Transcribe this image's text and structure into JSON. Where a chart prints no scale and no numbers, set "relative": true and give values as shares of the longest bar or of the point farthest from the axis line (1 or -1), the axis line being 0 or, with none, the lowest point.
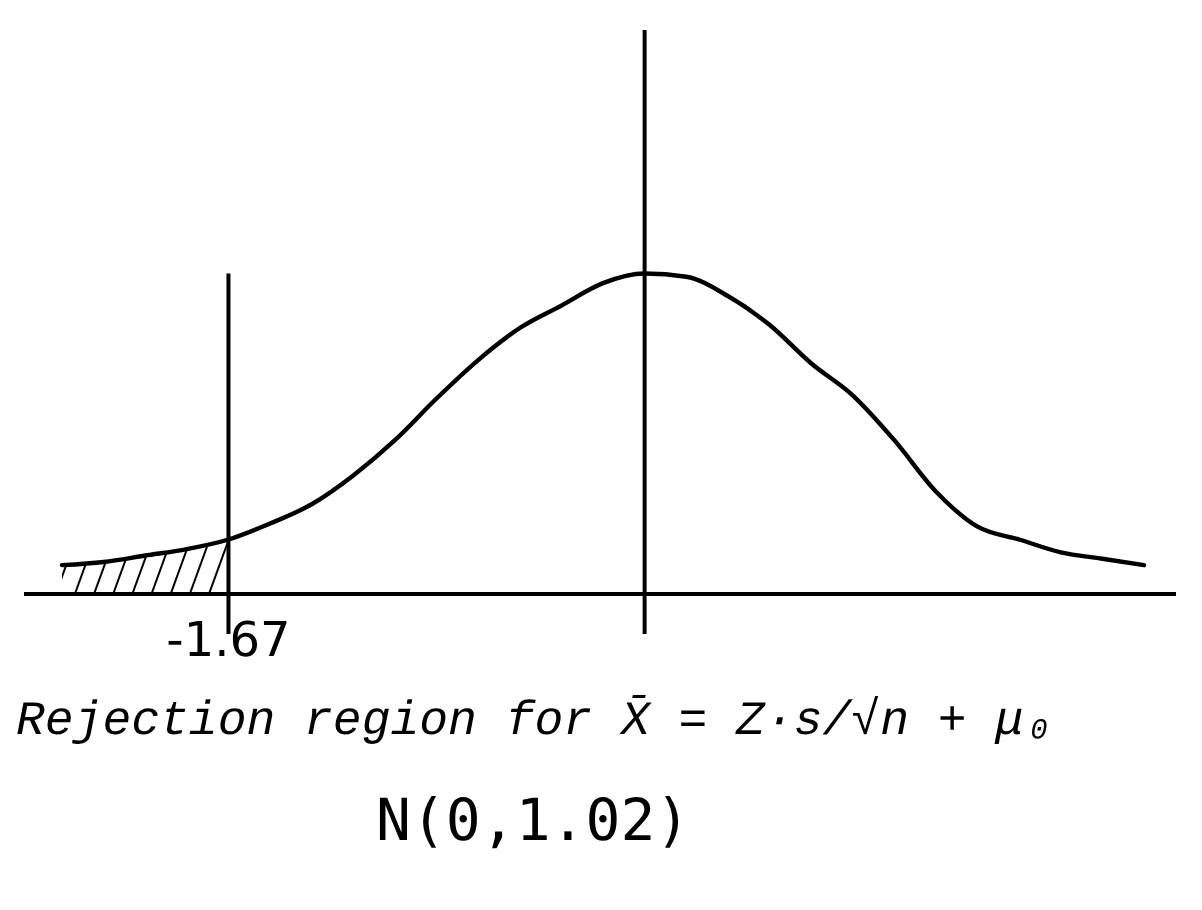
{
  "chart_data": {
    "type": "line",
    "relative": true,
    "categories": [
      null,
      null,
      null,
      null,
      null,
      null,
      null,
      null,
      null,
      null,
      null,
      null,
      null,
      null,
      null,
      null,
      null,
      null,
      null,
      null,
      null,
      null,
      null,
      null,
      null,
      null,
      null
    ],
    "series": [
      {
        "color": "#000000",
        "values": [
          0.09,
          0.1,
          0.12,
          0.14,
          0.17,
          0.22,
          0.28,
          0.37,
          0.48,
          0.61,
          0.73,
          0.83,
          0.9,
          0.97,
          1,
          0.99,
          0.93,
          0.84,
          0.72,
          0.62,
          0.48,
          0.32,
          0.21,
          0.17,
          0.13,
          0.11,
          0.09
        ]
      },
      {
        "type": "area",
        "color": "#000000",
        "values": [
          0.09,
          0.1,
          0.12,
          0.14,
          0.17,
          null,
          null,
          null,
          null,
          null,
          null,
          null,
          null,
          null,
          null,
          null,
          null,
          null,
          null,
          null,
          null,
          null,
          null,
          null,
          null,
          null,
          null
        ]
      }
    ],
    "annotations": [
      "-1.67",
      "Rejection region for X̄ = Z·s/√n + μ₀",
      "N(0,1.02)"
    ],
    "marker": "none",
    "line_style": "solid"
  }
}
